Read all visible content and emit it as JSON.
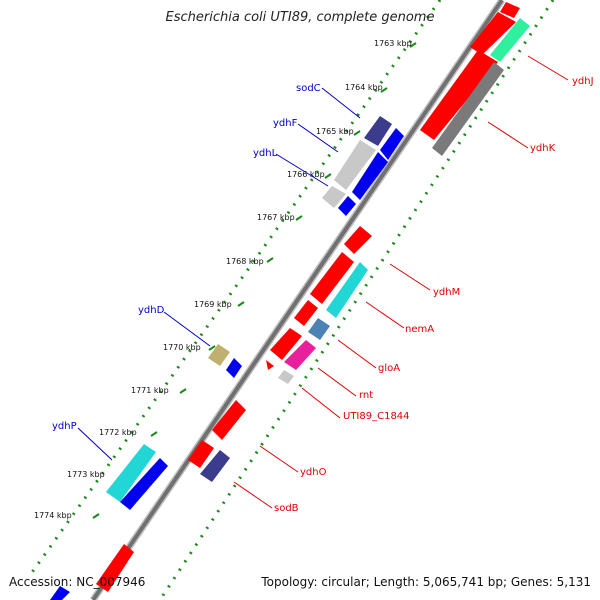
{
  "title": "Escherichia coli UTI89, complete genome",
  "footer": {
    "accession": "Accession: NC_007946",
    "topology": "Topology: circular; Length: 5,065,741 bp; Genes: 5,131"
  },
  "ticks": [
    "1763 kbp",
    "1764 kbp",
    "1765 kbp",
    "1766 kbp",
    "1767 kbp",
    "1768 kbp",
    "1769 kbp",
    "1770 kbp",
    "1771 kbp",
    "1772 kbp",
    "1773 kbp",
    "1774 kbp"
  ],
  "genes_left": [
    "sodC",
    "ydhF",
    "ydhL",
    "ydhD",
    "ydhP"
  ],
  "genes_right": [
    "ydhJ",
    "ydhK",
    "ydhM",
    "nemA",
    "gloA",
    "rnt",
    "UTI89_C1844",
    "ydhO",
    "sodB"
  ],
  "colors": {
    "red": "#ff0000",
    "navy": "#3c3c8c",
    "blue": "#0000ee",
    "cyan": "#22d6d6",
    "gray": "#7a7a7a",
    "lightgray": "#c8c8c8",
    "olive": "#c0b070",
    "steel": "#4c82b4",
    "magenta": "#e8209c",
    "mint": "#30f0a0",
    "dotted": "#1a8a1a"
  }
}
